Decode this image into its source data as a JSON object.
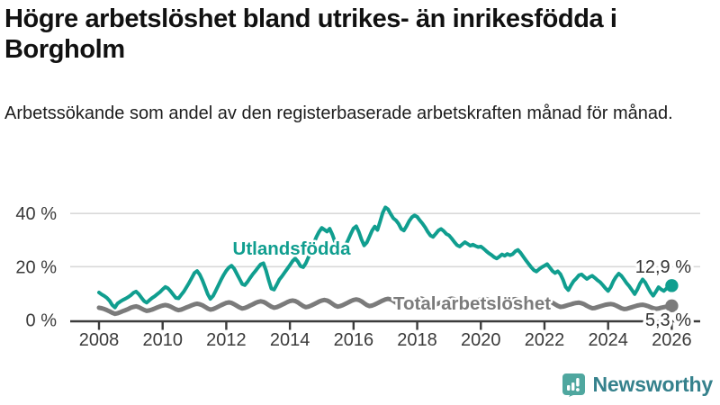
{
  "header": {
    "title": "Högre arbetslöshet bland utrikes- än inrikesfödda i Borgholm",
    "subtitle": "Arbetssökande som andel av den registerbaserade arbetskraften månad för månad."
  },
  "footer": {
    "brand": "Newsworthy"
  },
  "colors": {
    "teal": "#109E8F",
    "gray": "#7B7B7B",
    "grid": "#D9D9D9",
    "axis": "#3B3B3B",
    "tick_label": "#3B3B3B",
    "value_label": "#333333",
    "logo_bubble": "#4FA79F",
    "logo_text": "#35818C"
  },
  "chart_data": {
    "type": "line",
    "title": "Högre arbetslöshet bland utrikes- än inrikesfödda i Borgholm",
    "subtitle": "Arbetssökande som andel av den registerbaserade arbetskraften månad för månad.",
    "unit": "%",
    "x_start_year": 2008,
    "points_per_year": 12,
    "x_tick_labels": [
      "2008",
      "2010",
      "2012",
      "2014",
      "2016",
      "2018",
      "2020",
      "2022",
      "2024",
      "2026"
    ],
    "y_ticks": [
      {
        "value": 0,
        "label": "0 %"
      },
      {
        "value": 20,
        "label": "20 %"
      },
      {
        "value": 40,
        "label": "40 %"
      }
    ],
    "ylim": [
      0,
      45
    ],
    "grid": true,
    "legend_position": "inline-labels",
    "series": [
      {
        "name": "Total arbetslöshet",
        "color_key": "gray",
        "end_value": 5.3,
        "end_label": "5,3 %",
        "values": [
          4.6,
          4.4,
          4.1,
          3.7,
          3.2,
          2.7,
          2.3,
          2.5,
          2.9,
          3.3,
          3.7,
          4.1,
          4.6,
          4.9,
          5.1,
          4.8,
          4.3,
          3.8,
          3.4,
          3.6,
          3.9,
          4.3,
          4.7,
          5.1,
          5.4,
          5.6,
          5.4,
          5.0,
          4.5,
          4.0,
          3.7,
          3.9,
          4.3,
          4.7,
          5.1,
          5.5,
          5.9,
          6.1,
          5.9,
          5.5,
          4.9,
          4.3,
          3.9,
          4.1,
          4.5,
          5.0,
          5.5,
          6.0,
          6.4,
          6.6,
          6.4,
          5.9,
          5.3,
          4.7,
          4.3,
          4.5,
          4.9,
          5.4,
          5.9,
          6.4,
          6.8,
          7.0,
          6.8,
          6.3,
          5.6,
          5.0,
          4.6,
          4.8,
          5.2,
          5.7,
          6.2,
          6.7,
          7.1,
          7.3,
          7.1,
          6.6,
          5.9,
          5.2,
          4.8,
          5.0,
          5.4,
          5.9,
          6.4,
          6.9,
          7.3,
          7.5,
          7.3,
          6.8,
          6.1,
          5.4,
          5.0,
          5.2,
          5.6,
          6.1,
          6.6,
          7.1,
          7.5,
          7.7,
          7.5,
          7.0,
          6.3,
          5.6,
          5.2,
          5.4,
          5.8,
          6.3,
          6.8,
          7.3,
          7.7,
          7.9,
          7.7,
          7.2,
          6.5,
          5.8,
          5.4,
          5.6,
          6.0,
          6.5,
          7.0,
          7.5,
          7.9,
          8.1,
          7.9,
          7.4,
          6.7,
          6.0,
          5.6,
          5.8,
          6.2,
          6.6,
          7.0,
          7.4,
          7.8,
          8.0,
          7.8,
          7.3,
          6.6,
          6.0,
          5.6,
          5.8,
          6.2,
          6.6,
          7.0,
          7.4,
          7.7,
          7.9,
          7.8,
          7.5,
          7.1,
          6.7,
          6.4,
          6.6,
          6.9,
          7.1,
          7.3,
          7.5,
          7.7,
          7.8,
          7.6,
          7.2,
          6.7,
          6.2,
          5.8,
          5.9,
          6.2,
          6.5,
          6.8,
          7.0,
          7.2,
          7.3,
          7.0,
          6.5,
          5.9,
          5.3,
          4.9,
          5.0,
          5.3,
          5.6,
          5.9,
          6.2,
          6.4,
          6.5,
          6.3,
          5.9,
          5.3,
          4.8,
          4.4,
          4.5,
          4.8,
          5.1,
          5.4,
          5.7,
          5.9,
          6.0,
          5.8,
          5.4,
          4.9,
          4.4,
          4.1,
          4.2,
          4.5,
          4.8,
          5.1,
          5.4,
          5.6,
          5.7,
          5.5,
          5.2,
          4.8,
          4.4,
          4.2,
          4.3,
          4.6,
          4.8,
          5.0,
          5.2,
          5.3
        ]
      },
      {
        "name": "Utlandsfödda",
        "color_key": "teal",
        "end_value": 12.9,
        "end_label": "12,9 %",
        "values": [
          10.3,
          9.6,
          9.0,
          8.3,
          7.2,
          5.6,
          4.7,
          6.2,
          6.9,
          7.5,
          8.0,
          8.6,
          9.3,
          10.2,
          10.7,
          9.7,
          8.4,
          7.1,
          6.5,
          7.4,
          8.2,
          8.9,
          9.7,
          10.5,
          11.5,
          12.4,
          11.9,
          10.8,
          9.5,
          8.3,
          8.1,
          9.4,
          10.7,
          12.3,
          14.0,
          15.8,
          17.7,
          18.4,
          17.0,
          14.9,
          12.3,
          9.7,
          7.9,
          9.0,
          10.9,
          13.0,
          15.0,
          16.9,
          18.5,
          19.7,
          20.4,
          19.2,
          17.3,
          15.4,
          13.5,
          13.1,
          14.3,
          15.8,
          17.2,
          18.4,
          19.7,
          20.9,
          21.3,
          18.6,
          14.9,
          11.8,
          11.4,
          13.2,
          15.1,
          16.4,
          17.8,
          19.2,
          20.6,
          22.1,
          23.1,
          21.9,
          20.2,
          19.8,
          21.3,
          23.6,
          26.2,
          28.8,
          31.2,
          33.1,
          34.6,
          33.9,
          33.2,
          34.3,
          32.1,
          29.3,
          26.6,
          24.9,
          26.3,
          28.1,
          30.2,
          32.4,
          34.4,
          35.2,
          33.1,
          30.2,
          28.0,
          29.1,
          31.3,
          33.6,
          35.1,
          33.8,
          36.9,
          40.3,
          42.3,
          41.6,
          39.8,
          38.2,
          37.4,
          36.1,
          34.2,
          33.6,
          35.3,
          37.2,
          38.6,
          39.3,
          38.7,
          37.4,
          36.2,
          34.8,
          33.1,
          31.7,
          31.2,
          32.4,
          33.6,
          34.2,
          33.4,
          32.3,
          31.8,
          30.6,
          29.3,
          28.1,
          27.6,
          28.4,
          29.2,
          28.6,
          27.9,
          28.3,
          27.8,
          27.4,
          27.6,
          26.8,
          25.9,
          25.1,
          24.4,
          23.6,
          23.1,
          23.8,
          24.6,
          24.1,
          24.8,
          24.3,
          24.7,
          25.8,
          26.3,
          25.2,
          23.8,
          22.4,
          21.1,
          19.8,
          18.7,
          18.2,
          19.1,
          19.8,
          20.4,
          21.0,
          19.7,
          18.4,
          17.6,
          18.3,
          17.2,
          15.1,
          12.4,
          11.2,
          13.0,
          14.6,
          15.6,
          16.8,
          17.1,
          16.2,
          15.4,
          16.1,
          16.6,
          15.8,
          14.9,
          14.2,
          13.1,
          11.9,
          10.9,
          12.3,
          14.6,
          16.2,
          17.4,
          16.6,
          15.2,
          13.8,
          12.6,
          11.2,
          9.7,
          11.4,
          13.6,
          15.2,
          14.1,
          12.2,
          10.4,
          9.1,
          10.6,
          12.3,
          11.5,
          10.9,
          11.8,
          12.4,
          12.9
        ]
      }
    ]
  }
}
